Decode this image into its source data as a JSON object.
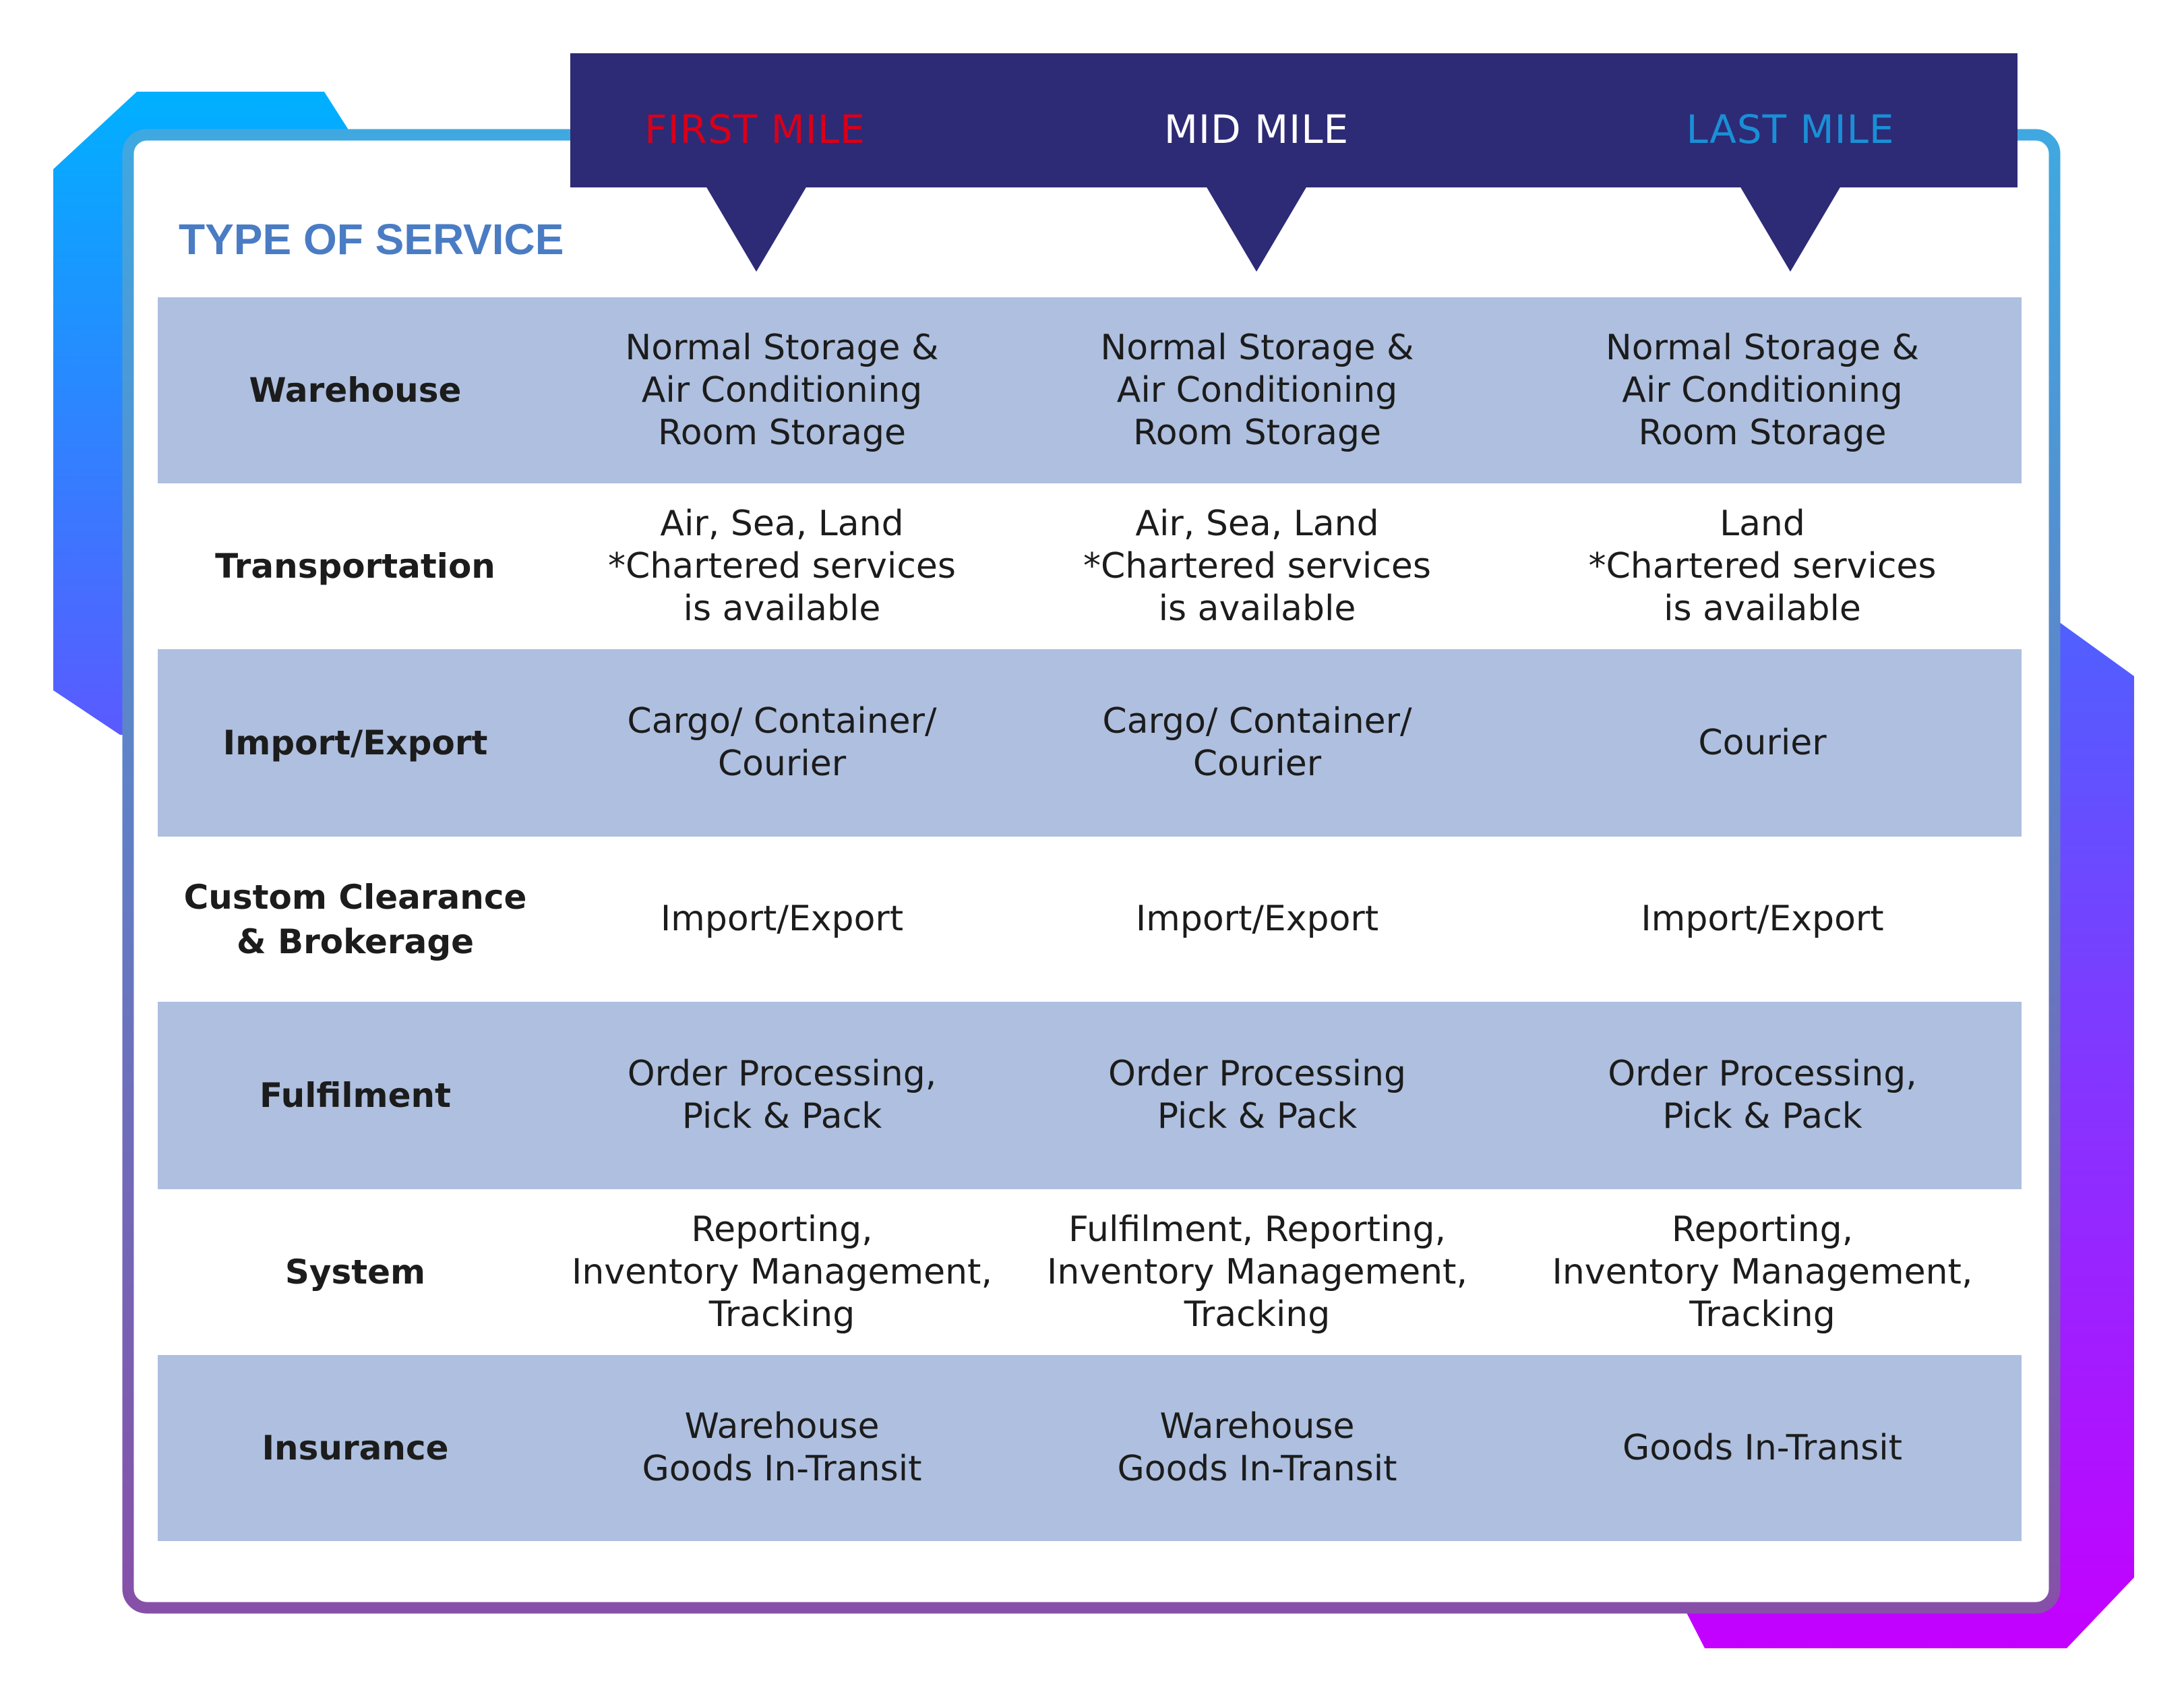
{
  "colors": {
    "header_bg": "#2d2b76",
    "first_mile": "#d7001a",
    "mid_mile": "#ffffff",
    "last_mile": "#1a8fd6",
    "title": "#4a7cc4",
    "row_shade": "#aebfdf",
    "accent_gradient_start": "#00b0ff",
    "accent_gradient_end": "#c400ff"
  },
  "header": {
    "columns": [
      {
        "label": "FIRST MILE"
      },
      {
        "label": "MID MILE"
      },
      {
        "label": "LAST MILE"
      }
    ]
  },
  "title": "TYPE OF SERVICE",
  "rows": [
    {
      "label": "Warehouse",
      "cells": [
        "Normal Storage &\nAir Conditioning\nRoom Storage",
        "Normal Storage &\nAir Conditioning\nRoom Storage",
        "Normal Storage &\nAir Conditioning\nRoom Storage"
      ]
    },
    {
      "label": "Transportation",
      "cells": [
        "Air, Sea, Land\n*Chartered services\nis available",
        "Air, Sea, Land\n*Chartered services\nis available",
        "Land\n*Chartered services\nis available"
      ]
    },
    {
      "label": "Import/Export",
      "cells": [
        "Cargo/ Container/\nCourier",
        "Cargo/ Container/\nCourier",
        "Courier"
      ]
    },
    {
      "label": "Custom Clearance\n& Brokerage",
      "cells": [
        "Import/Export",
        "Import/Export",
        "Import/Export"
      ]
    },
    {
      "label": "Fulfilment",
      "cells": [
        "Order Processing,\nPick & Pack",
        "Order Processing\nPick & Pack",
        "Order Processing,\nPick & Pack"
      ]
    },
    {
      "label": "System",
      "cells": [
        "Reporting,\nInventory Management,\nTracking",
        "Fulfilment, Reporting,\nInventory Management,\nTracking",
        "Reporting,\nInventory Management,\nTracking"
      ]
    },
    {
      "label": "Insurance",
      "cells": [
        "Warehouse\nGoods In-Transit",
        "Warehouse\nGoods In-Transit",
        "Goods In-Transit"
      ]
    }
  ]
}
